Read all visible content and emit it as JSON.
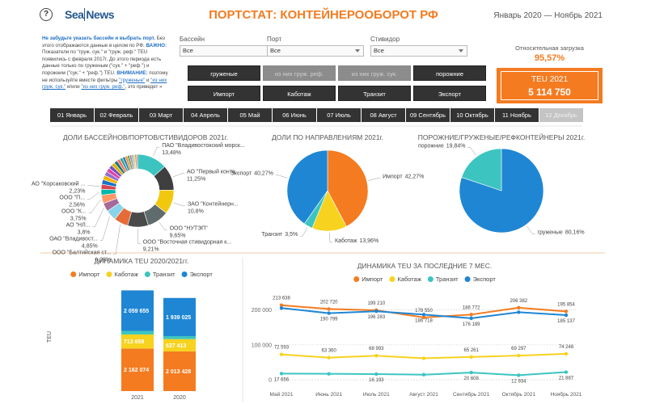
{
  "header": {
    "help": "?",
    "logo": [
      "Sea",
      "News"
    ],
    "title": "ПОРТСТАТ: КОНТЕЙНЕРООБОРОТ РФ",
    "period": "Январь 2020 — Ноябрь 2021"
  },
  "notice": [
    {
      "text": "Не забудьте указать бассейн и выбрать порт.",
      "style": "em"
    },
    {
      "text": " Без этого отображаются данные в целом по РФ. "
    },
    {
      "text": "ВАЖНО:",
      "style": "em"
    },
    {
      "text": " Показатели по \"груж. сук.\" и \"груж. реф.\" TEU появились с февраля 2017г. До этого периода есть данные только по груженым (\"сук.\" + \"реф.\") и порожним (\"сук.\" + \"реф.\") TEU. "
    },
    {
      "text": "ВНИМАНИЕ:",
      "style": "em"
    },
    {
      "text": " поэтому не используйте вместе фильтры "
    },
    {
      "text": "\"груженые\"",
      "style": "link"
    },
    {
      "text": " и "
    },
    {
      "text": "\"из них груж. сук.\"",
      "style": "link"
    },
    {
      "text": " и/или "
    },
    {
      "text": "\"из них груж. реф.\"",
      "style": "link"
    },
    {
      "text": ", это приведет »"
    }
  ],
  "filters": [
    {
      "label": "Бассейн",
      "value": "Все"
    },
    {
      "label": "Порт",
      "value": "Все"
    },
    {
      "label": "Стивидор",
      "value": "Все"
    }
  ],
  "buttons": {
    "cargo": [
      {
        "label": "груженые",
        "enabled": true
      },
      {
        "label": "из них груж. реф.",
        "enabled": false
      },
      {
        "label": "из них груж. сук.",
        "enabled": false
      },
      {
        "label": "порожние",
        "enabled": true
      }
    ],
    "direction": [
      {
        "label": "Импорт",
        "enabled": true
      },
      {
        "label": "Каботаж",
        "enabled": true
      },
      {
        "label": "Транзит",
        "enabled": true
      },
      {
        "label": "Экспорт",
        "enabled": true
      }
    ]
  },
  "kpi": {
    "load_label": "Относительная загрузка",
    "load": "95,57%",
    "teu_label": "TEU 2021",
    "teu": "5 114 750"
  },
  "months": [
    {
      "label": "01 Январь",
      "enabled": true
    },
    {
      "label": "02 Февраль",
      "enabled": true
    },
    {
      "label": "03 Март",
      "enabled": true
    },
    {
      "label": "04 Апрель",
      "enabled": true
    },
    {
      "label": "05 Май",
      "enabled": true
    },
    {
      "label": "06 Июнь",
      "enabled": true
    },
    {
      "label": "07 Июль",
      "enabled": true
    },
    {
      "label": "08 Август",
      "enabled": true
    },
    {
      "label": "09 Сентябрь",
      "enabled": true
    },
    {
      "label": "10 Октябрь",
      "enabled": true
    },
    {
      "label": "11 Ноябрь",
      "enabled": true
    },
    {
      "label": "12 Декабрь",
      "enabled": false
    }
  ],
  "chart_data": [
    {
      "type": "donut",
      "title": "ДОЛИ БАССЕЙНОВ/ПОРТОВ/СТИВИДОРОВ 2021г.",
      "categories": [
        "ПАО \"Владивостокский морск...",
        "АО \"Первый конте...",
        "ЗАО \"Контейнерн...",
        "ООО \"НУТЭП\"",
        "ООО \"Восточная стивидорная к...",
        "ООО \"Балтийская ст...",
        "ОАО \"Владивост...",
        "АО \"НЛ...",
        "ООО \"К...",
        "ООО \"П...",
        "АО \"Корсаковский ...",
        null,
        null,
        null,
        null,
        null,
        null,
        null,
        null,
        null,
        null,
        null,
        null,
        null,
        null,
        null,
        null,
        null
      ],
      "values": [
        13.48,
        11.25,
        10.8,
        9.65,
        9.21,
        6.29,
        4.85,
        3.8,
        3.75,
        2.56,
        2.23,
        2.1,
        2.0,
        1.9,
        1.8,
        1.7,
        1.6,
        1.5,
        1.4,
        1.3,
        1.2,
        1.1,
        1.0,
        0.9,
        0.8,
        0.7,
        0.6,
        0.53
      ],
      "value_labels": [
        "13,48%",
        "11,25%",
        "10,8%",
        "9,65%",
        "9,21%",
        "6,29%",
        "4,85%",
        "3,8%",
        "3,75%",
        "2,56%",
        "2,23%",
        null,
        null,
        null,
        null,
        null,
        null,
        null,
        null,
        null,
        null,
        null,
        null,
        null,
        null,
        null,
        null,
        null
      ],
      "colors": [
        "#3cc5c0",
        "#3f3f3f",
        "#f2c80f",
        "#5f6b6d",
        "#4a4a4a",
        "#e66c37",
        "#8ad4eb",
        "#a66999",
        "#fe9666",
        "#01b8aa",
        "#d64550",
        "#1a73c8",
        "#f5b300",
        "#8d6fd1",
        "#e044a7",
        "#744ec2",
        "#d9b300",
        "#197278",
        "#ff6f61",
        "#37a794",
        "#2c7fb8",
        "#f28e2b",
        "#59a14f",
        "#b07aa1",
        "#76b7b2",
        "#edc948",
        "#9c755f",
        "#e15759"
      ]
    },
    {
      "type": "pie",
      "title": "ДОЛИ ПО НАПРАВЛЕНИЯМ 2021г.",
      "categories": [
        "Импорт",
        "Каботаж",
        "Транзит",
        "Экспорт"
      ],
      "values": [
        42.27,
        13.96,
        3.5,
        40.27
      ],
      "value_labels": [
        "42,27%",
        "13,96%",
        "3,5%",
        "40,27%"
      ],
      "colors": [
        "#f47b20",
        "#f7d21f",
        "#3cc5c0",
        "#1f86d4"
      ]
    },
    {
      "type": "pie",
      "title": "ПОРОЖНИЕ/ГРУЖЕНЫЕ/РЕФКОНТЕЙНЕРЫ 2021г.",
      "categories": [
        "груженые",
        "порожние"
      ],
      "values": [
        80.16,
        19.84
      ],
      "value_labels": [
        "80,16%",
        "19,84%"
      ],
      "colors": [
        "#1f86d4",
        "#3cc5c0"
      ]
    },
    {
      "type": "bar",
      "stacked": true,
      "title": "ДИНАМИКА TEU 2020/2021гг.",
      "ylabel": "TEU",
      "legend": "top",
      "categories": [
        "2021",
        "2020"
      ],
      "ylim": [
        0,
        5500000
      ],
      "series": [
        {
          "name": "Импорт",
          "color": "#f47b20",
          "values": [
            2162074,
            2013428
          ],
          "value_labels": [
            "2 162 074",
            "2 013 428"
          ]
        },
        {
          "name": "Каботаж",
          "color": "#f7d21f",
          "values": [
            713659,
            627413
          ],
          "value_labels": [
            "713 659",
            "627 413"
          ]
        },
        {
          "name": "Транзит",
          "color": "#3cc5c0",
          "values": [
            179362,
            150000
          ],
          "value_labels": [
            null,
            null
          ]
        },
        {
          "name": "Экспорт",
          "color": "#1f86d4",
          "values": [
            2059655,
            1939025
          ],
          "value_labels": [
            "2 059 655",
            "1 939 025"
          ]
        }
      ]
    },
    {
      "type": "line",
      "title": "ДИНАМИКА TEU ЗА ПОСЛЕДНИЕ 7 МЕС.",
      "legend": "top",
      "grid": true,
      "categories": [
        "Май 2021",
        "Июнь 2021",
        "Июль 2021",
        "Август 2021",
        "Сентябрь 2021",
        "Октябрь 2021",
        "Ноябрь 2021"
      ],
      "ylim": [
        0,
        250000
      ],
      "yticks": [
        0,
        {
          "value": 100000,
          "label": "100 000"
        },
        {
          "value": 200000,
          "label": "200 000"
        }
      ],
      "series": [
        {
          "name": "Импорт",
          "color": "#f47b20",
          "values": [
            213638,
            202720,
            199210,
            178550,
            186772,
            206382,
            195854
          ],
          "value_labels": [
            "213 638",
            "202 720",
            "199 210",
            "178 550",
            "186 772",
            "206 382",
            "195 854"
          ]
        },
        {
          "name": "Каботаж",
          "color": "#f7d21f",
          "values": [
            72593,
            63360,
            68993,
            61500,
            65261,
            69297,
            74248
          ],
          "value_labels": [
            "72 593",
            "63 360",
            "68 993",
            null,
            "65 261",
            "69 297",
            "74 248"
          ]
        },
        {
          "name": "Транзит",
          "color": "#3cc5c0",
          "values": [
            17656,
            16971,
            16193,
            14600,
            20608,
            12934,
            21887
          ],
          "value_labels": [
            "17 656",
            null,
            "16 193",
            null,
            "20 608",
            "12 934",
            "21 887"
          ]
        },
        {
          "name": "Экспорт",
          "color": "#1f86d4",
          "values": [
            205420,
            190799,
            196283,
            186718,
            176189,
            193470,
            185137
          ],
          "value_labels": [
            null,
            "190 799",
            "196 283",
            "186 718",
            "176 189",
            null,
            "185 137"
          ]
        }
      ]
    }
  ]
}
